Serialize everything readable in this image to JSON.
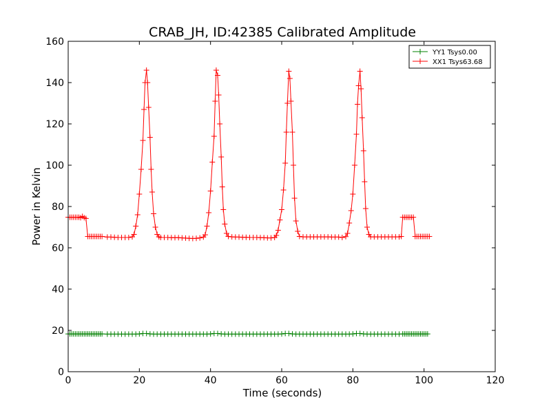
{
  "chart_data": {
    "type": "line",
    "title": "CRAB_JH, ID:42385 Calibrated Amplitude",
    "xlabel": "Time (seconds)",
    "ylabel": "Power in Kelvin",
    "xlim": [
      0,
      120
    ],
    "ylim": [
      0,
      160
    ],
    "xticks": [
      "0",
      "20",
      "40",
      "60",
      "80",
      "100",
      "120"
    ],
    "yticks": [
      "0",
      "20",
      "40",
      "60",
      "80",
      "100",
      "120",
      "140",
      "160"
    ],
    "grid": false,
    "legend_position": "top-right",
    "marker": "plus",
    "series": [
      {
        "name": "YY1 Tsys0.00",
        "color": "#008000",
        "points": [
          [
            0,
            18.3
          ],
          [
            0.5,
            18.3
          ],
          [
            1,
            18.3
          ],
          [
            1.5,
            18.3
          ],
          [
            2,
            18.3
          ],
          [
            2.5,
            18.3
          ],
          [
            3,
            18.3
          ],
          [
            3.5,
            18.3
          ],
          [
            4,
            18.3
          ],
          [
            4.5,
            18.3
          ],
          [
            5,
            18.3
          ],
          [
            5.5,
            18.3
          ],
          [
            6,
            18.3
          ],
          [
            6.5,
            18.3
          ],
          [
            7,
            18.3
          ],
          [
            7.5,
            18.3
          ],
          [
            8,
            18.3
          ],
          [
            8.5,
            18.3
          ],
          [
            9,
            18.3
          ],
          [
            9.5,
            18.3
          ],
          [
            11,
            18.2
          ],
          [
            12,
            18.2
          ],
          [
            13,
            18.2
          ],
          [
            14,
            18.2
          ],
          [
            15,
            18.2
          ],
          [
            16,
            18.2
          ],
          [
            17,
            18.2
          ],
          [
            18,
            18.2
          ],
          [
            19,
            18.2
          ],
          [
            20,
            18.3
          ],
          [
            21,
            18.5
          ],
          [
            22,
            18.5
          ],
          [
            23,
            18.3
          ],
          [
            24,
            18.2
          ],
          [
            25,
            18.2
          ],
          [
            26,
            18.2
          ],
          [
            27,
            18.2
          ],
          [
            28,
            18.2
          ],
          [
            29,
            18.2
          ],
          [
            30,
            18.2
          ],
          [
            31,
            18.2
          ],
          [
            32,
            18.2
          ],
          [
            33,
            18.2
          ],
          [
            34,
            18.2
          ],
          [
            35,
            18.2
          ],
          [
            36,
            18.2
          ],
          [
            37,
            18.2
          ],
          [
            38,
            18.2
          ],
          [
            39,
            18.2
          ],
          [
            40,
            18.3
          ],
          [
            41,
            18.5
          ],
          [
            42,
            18.5
          ],
          [
            43,
            18.3
          ],
          [
            44,
            18.2
          ],
          [
            45,
            18.2
          ],
          [
            46,
            18.2
          ],
          [
            47,
            18.2
          ],
          [
            48,
            18.2
          ],
          [
            49,
            18.2
          ],
          [
            50,
            18.2
          ],
          [
            51,
            18.2
          ],
          [
            52,
            18.2
          ],
          [
            53,
            18.2
          ],
          [
            54,
            18.2
          ],
          [
            55,
            18.2
          ],
          [
            56,
            18.2
          ],
          [
            57,
            18.2
          ],
          [
            58,
            18.2
          ],
          [
            59,
            18.2
          ],
          [
            60,
            18.3
          ],
          [
            61,
            18.5
          ],
          [
            62,
            18.5
          ],
          [
            63,
            18.3
          ],
          [
            64,
            18.2
          ],
          [
            65,
            18.2
          ],
          [
            66,
            18.2
          ],
          [
            67,
            18.2
          ],
          [
            68,
            18.2
          ],
          [
            69,
            18.2
          ],
          [
            70,
            18.2
          ],
          [
            71,
            18.2
          ],
          [
            72,
            18.2
          ],
          [
            73,
            18.2
          ],
          [
            74,
            18.2
          ],
          [
            75,
            18.2
          ],
          [
            76,
            18.2
          ],
          [
            77,
            18.2
          ],
          [
            78,
            18.2
          ],
          [
            79,
            18.2
          ],
          [
            80,
            18.3
          ],
          [
            81,
            18.5
          ],
          [
            82,
            18.5
          ],
          [
            83,
            18.3
          ],
          [
            84,
            18.2
          ],
          [
            85,
            18.2
          ],
          [
            86,
            18.2
          ],
          [
            87,
            18.2
          ],
          [
            88,
            18.2
          ],
          [
            89,
            18.2
          ],
          [
            90,
            18.2
          ],
          [
            91,
            18.2
          ],
          [
            92,
            18.2
          ],
          [
            93,
            18.2
          ],
          [
            94,
            18.3
          ],
          [
            94.5,
            18.3
          ],
          [
            95,
            18.3
          ],
          [
            95.5,
            18.3
          ],
          [
            96,
            18.3
          ],
          [
            96.5,
            18.3
          ],
          [
            97,
            18.3
          ],
          [
            97.5,
            18.3
          ],
          [
            98,
            18.3
          ],
          [
            98.5,
            18.3
          ],
          [
            99,
            18.3
          ],
          [
            99.5,
            18.3
          ],
          [
            100,
            18.3
          ],
          [
            100.5,
            18.3
          ],
          [
            101,
            18.3
          ]
        ]
      },
      {
        "name": "XX1 Tsys63.68",
        "color": "#ff0000",
        "points": [
          [
            0,
            74.8
          ],
          [
            0.5,
            74.8
          ],
          [
            1,
            74.8
          ],
          [
            1.5,
            74.8
          ],
          [
            2,
            74.8
          ],
          [
            2.5,
            74.8
          ],
          [
            3,
            74.8
          ],
          [
            3.5,
            74.6
          ],
          [
            4,
            75.2
          ],
          [
            4.5,
            74.6
          ],
          [
            5,
            74.2
          ],
          [
            5.5,
            65.5
          ],
          [
            6,
            65.5
          ],
          [
            6.5,
            65.5
          ],
          [
            7,
            65.5
          ],
          [
            7.5,
            65.5
          ],
          [
            8,
            65.5
          ],
          [
            8.5,
            65.5
          ],
          [
            9,
            65.5
          ],
          [
            9.5,
            65.5
          ],
          [
            11,
            65.2
          ],
          [
            12,
            65.2
          ],
          [
            13,
            65.1
          ],
          [
            14,
            65.0
          ],
          [
            15,
            65.0
          ],
          [
            16,
            65.0
          ],
          [
            17,
            65.0
          ],
          [
            18,
            65.3
          ],
          [
            18.5,
            66.5
          ],
          [
            19,
            70.5
          ],
          [
            19.5,
            76
          ],
          [
            20,
            86
          ],
          [
            20.5,
            98
          ],
          [
            21,
            112
          ],
          [
            21.3,
            127
          ],
          [
            21.6,
            140
          ],
          [
            22,
            146
          ],
          [
            22.3,
            140
          ],
          [
            22.6,
            128
          ],
          [
            23,
            113.5
          ],
          [
            23.3,
            98
          ],
          [
            23.6,
            87
          ],
          [
            24,
            76.5
          ],
          [
            24.5,
            70
          ],
          [
            25,
            66.5
          ],
          [
            25.5,
            65.3
          ],
          [
            26,
            65.0
          ],
          [
            27,
            65.0
          ],
          [
            28,
            65.0
          ],
          [
            29,
            64.9
          ],
          [
            30,
            64.9
          ],
          [
            31,
            64.9
          ],
          [
            32,
            64.8
          ],
          [
            33,
            64.7
          ],
          [
            34,
            64.6
          ],
          [
            35,
            64.5
          ],
          [
            36,
            64.6
          ],
          [
            37,
            64.8
          ],
          [
            38,
            65.2
          ],
          [
            38.5,
            66.3
          ],
          [
            39,
            70.5
          ],
          [
            39.5,
            77
          ],
          [
            40,
            87.5
          ],
          [
            40.5,
            101.5
          ],
          [
            41,
            114
          ],
          [
            41.3,
            131
          ],
          [
            41.6,
            146
          ],
          [
            42,
            143.5
          ],
          [
            42.3,
            134
          ],
          [
            42.6,
            120
          ],
          [
            43,
            104
          ],
          [
            43.3,
            89.5
          ],
          [
            43.6,
            78.5
          ],
          [
            44,
            71.5
          ],
          [
            44.5,
            67
          ],
          [
            45,
            65.5
          ],
          [
            46,
            65.3
          ],
          [
            47,
            65.2
          ],
          [
            48,
            65.2
          ],
          [
            49,
            65.1
          ],
          [
            50,
            65.1
          ],
          [
            51,
            65.0
          ],
          [
            52,
            65.0
          ],
          [
            53,
            65.0
          ],
          [
            54,
            64.9
          ],
          [
            55,
            64.9
          ],
          [
            56,
            64.8
          ],
          [
            57,
            64.8
          ],
          [
            58,
            65.0
          ],
          [
            58.5,
            66.0
          ],
          [
            59,
            68.5
          ],
          [
            59.5,
            73.5
          ],
          [
            60,
            78.5
          ],
          [
            60.5,
            88
          ],
          [
            61,
            101
          ],
          [
            61.3,
            116
          ],
          [
            61.6,
            130
          ],
          [
            62,
            145.5
          ],
          [
            62.3,
            142
          ],
          [
            62.6,
            131
          ],
          [
            63,
            116
          ],
          [
            63.3,
            100
          ],
          [
            63.6,
            84
          ],
          [
            64,
            73
          ],
          [
            64.5,
            68
          ],
          [
            65,
            65.5
          ],
          [
            66,
            65.3
          ],
          [
            67,
            65.3
          ],
          [
            68,
            65.3
          ],
          [
            69,
            65.3
          ],
          [
            70,
            65.3
          ],
          [
            71,
            65.3
          ],
          [
            72,
            65.3
          ],
          [
            73,
            65.3
          ],
          [
            74,
            65.2
          ],
          [
            75,
            65.2
          ],
          [
            76,
            65.2
          ],
          [
            77,
            65.0
          ],
          [
            78,
            65.4
          ],
          [
            78.5,
            67
          ],
          [
            79,
            72
          ],
          [
            79.5,
            78
          ],
          [
            80,
            86
          ],
          [
            80.5,
            100
          ],
          [
            81,
            115
          ],
          [
            81.3,
            129.5
          ],
          [
            81.6,
            138.5
          ],
          [
            82,
            145.5
          ],
          [
            82.3,
            137
          ],
          [
            82.6,
            123
          ],
          [
            83,
            107
          ],
          [
            83.3,
            92
          ],
          [
            83.6,
            79
          ],
          [
            84,
            70
          ],
          [
            84.5,
            66.5
          ],
          [
            85,
            65.3
          ],
          [
            86,
            65.3
          ],
          [
            87,
            65.3
          ],
          [
            88,
            65.3
          ],
          [
            89,
            65.3
          ],
          [
            90,
            65.3
          ],
          [
            91,
            65.3
          ],
          [
            92,
            65.3
          ],
          [
            93,
            65.3
          ],
          [
            93.6,
            65.5
          ],
          [
            94,
            74.8
          ],
          [
            94.5,
            74.8
          ],
          [
            95,
            74.8
          ],
          [
            95.5,
            74.8
          ],
          [
            96,
            74.8
          ],
          [
            96.5,
            74.8
          ],
          [
            97,
            74.8
          ],
          [
            97.5,
            65.5
          ],
          [
            98,
            65.5
          ],
          [
            98.5,
            65.5
          ],
          [
            99,
            65.5
          ],
          [
            99.5,
            65.5
          ],
          [
            100,
            65.5
          ],
          [
            100.5,
            65.5
          ],
          [
            101,
            65.5
          ],
          [
            101.5,
            65.5
          ]
        ]
      }
    ]
  }
}
